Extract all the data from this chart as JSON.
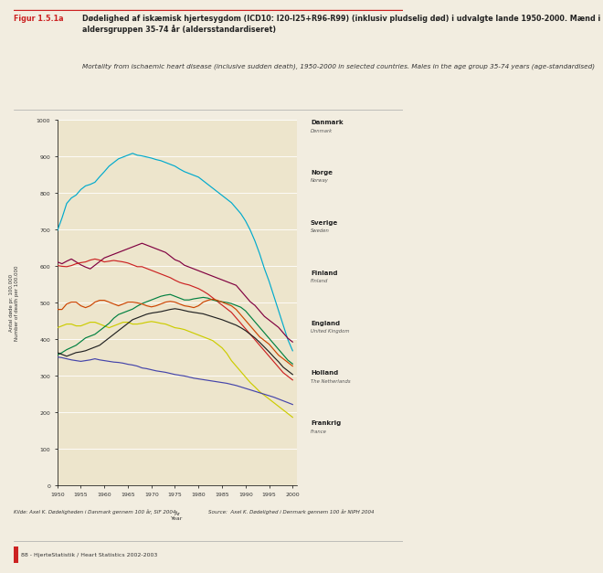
{
  "title_label": "Figur 1.5.1a",
  "title_bold": "Dødelighed af iskæmisk hjertesygdom (ICD10: I20-I25+R96-R99) (inklusiv pludselig død) i udvalgte lande 1950-2000. Mænd i aldersgruppen 35-74 år (aldersstandardiseret)",
  "title_italic": "Mortality from ischaemic heart disease (inclusive sudden death), 1950-2000 in selected countries. Males in the age group 35-74 years (age-standardised)",
  "ylabel_da": "Antal døde pr. 100.000",
  "ylabel_en": "Number of death per 100.000",
  "xlabel_da": "År",
  "xlabel_en": "Year",
  "source_da": "Kilde: Axel K. Dødeligheden i Danmark gennem 100 år, SIF 2004",
  "source_en": "Source:  Axel K. Dødelighed i Denmark gennem 100 år NIPH 2004",
  "footer": "88 - HjerteStatistik / Heart Statistics 2002-2003",
  "background_color": "#f2ede0",
  "plot_bg": "#ede5cc",
  "years": [
    1950,
    1951,
    1952,
    1953,
    1954,
    1955,
    1956,
    1957,
    1958,
    1959,
    1960,
    1961,
    1962,
    1963,
    1964,
    1965,
    1966,
    1967,
    1968,
    1969,
    1970,
    1971,
    1972,
    1973,
    1974,
    1975,
    1976,
    1977,
    1978,
    1979,
    1980,
    1981,
    1982,
    1983,
    1984,
    1985,
    1986,
    1987,
    1988,
    1989,
    1990,
    1991,
    1992,
    1993,
    1994,
    1995,
    1996,
    1997,
    1998,
    1999,
    2000
  ],
  "denmark": [
    610,
    605,
    612,
    618,
    610,
    602,
    596,
    591,
    601,
    611,
    621,
    626,
    631,
    636,
    641,
    646,
    651,
    656,
    661,
    656,
    651,
    646,
    641,
    636,
    626,
    616,
    611,
    601,
    596,
    591,
    586,
    581,
    576,
    571,
    566,
    561,
    556,
    551,
    546,
    531,
    516,
    501,
    491,
    476,
    461,
    451,
    441,
    431,
    416,
    401,
    391
  ],
  "norway": [
    600,
    598,
    597,
    600,
    605,
    608,
    610,
    615,
    618,
    615,
    610,
    612,
    614,
    612,
    610,
    607,
    602,
    597,
    597,
    592,
    587,
    582,
    577,
    572,
    567,
    560,
    554,
    550,
    547,
    542,
    537,
    530,
    522,
    512,
    502,
    492,
    482,
    472,
    457,
    442,
    427,
    412,
    397,
    382,
    367,
    352,
    337,
    322,
    307,
    297,
    287
  ],
  "sweden": [
    430,
    435,
    440,
    440,
    435,
    435,
    440,
    445,
    445,
    440,
    435,
    430,
    435,
    440,
    445,
    445,
    440,
    440,
    442,
    445,
    447,
    445,
    442,
    440,
    435,
    430,
    428,
    425,
    420,
    415,
    410,
    405,
    400,
    395,
    385,
    375,
    360,
    340,
    325,
    310,
    295,
    280,
    268,
    255,
    245,
    235,
    225,
    215,
    205,
    195,
    185
  ],
  "finland_dark": [
    355,
    362,
    370,
    376,
    382,
    392,
    402,
    407,
    412,
    422,
    432,
    442,
    456,
    466,
    471,
    476,
    481,
    489,
    496,
    501,
    506,
    511,
    516,
    519,
    521,
    516,
    511,
    506,
    506,
    509,
    511,
    513,
    511,
    506,
    503,
    501,
    499,
    496,
    491,
    486,
    476,
    461,
    446,
    431,
    416,
    401,
    386,
    371,
    356,
    341,
    331
  ],
  "england_pink": [
    480,
    480,
    495,
    500,
    500,
    490,
    485,
    490,
    500,
    505,
    505,
    500,
    495,
    490,
    495,
    500,
    500,
    498,
    495,
    490,
    487,
    490,
    495,
    500,
    502,
    500,
    495,
    490,
    488,
    485,
    490,
    500,
    505,
    508,
    505,
    500,
    495,
    490,
    480,
    465,
    450,
    435,
    420,
    405,
    395,
    385,
    370,
    355,
    345,
    335,
    325
  ],
  "netherlands": [
    362,
    357,
    352,
    357,
    362,
    364,
    367,
    372,
    377,
    382,
    392,
    402,
    412,
    422,
    432,
    442,
    452,
    457,
    462,
    467,
    470,
    472,
    474,
    477,
    480,
    482,
    480,
    477,
    474,
    472,
    470,
    468,
    464,
    460,
    456,
    452,
    447,
    442,
    437,
    430,
    422,
    412,
    402,
    390,
    377,
    364,
    350,
    337,
    322,
    312,
    302
  ],
  "france": [
    350,
    348,
    345,
    342,
    340,
    338,
    340,
    342,
    345,
    342,
    340,
    338,
    336,
    335,
    333,
    330,
    328,
    325,
    320,
    318,
    315,
    312,
    310,
    308,
    305,
    302,
    300,
    298,
    295,
    292,
    290,
    288,
    286,
    284,
    282,
    280,
    278,
    275,
    272,
    268,
    264,
    260,
    256,
    252,
    248,
    244,
    240,
    235,
    230,
    225,
    220
  ],
  "finland_cyan": [
    695,
    730,
    770,
    785,
    793,
    808,
    818,
    822,
    828,
    843,
    857,
    872,
    882,
    892,
    897,
    902,
    907,
    902,
    900,
    897,
    894,
    890,
    887,
    882,
    877,
    872,
    864,
    857,
    852,
    847,
    842,
    832,
    822,
    812,
    802,
    792,
    782,
    772,
    757,
    742,
    722,
    697,
    667,
    632,
    592,
    557,
    517,
    477,
    437,
    397,
    367
  ],
  "colors": {
    "denmark": "#800040",
    "norway": "#cc2222",
    "sweden": "#cccc00",
    "finland_dark": "#008040",
    "england_pink": "#cc4400",
    "netherlands": "#222222",
    "france": "#4444aa",
    "finland_cyan": "#00aacc"
  },
  "legend_entries": [
    {
      "da": "Danmark",
      "en": "Denmark",
      "color": "#800040"
    },
    {
      "da": "Norge",
      "en": "Norway",
      "color": "#cc2222"
    },
    {
      "da": "Sverige",
      "en": "Sweden",
      "color": "#cccc00"
    },
    {
      "da": "Finland",
      "en": "Finland",
      "color": "#008040"
    },
    {
      "da": "England",
      "en": "United Kingdom",
      "color": "#cc4400"
    },
    {
      "da": "Holland",
      "en": "The Netherlands",
      "color": "#222222"
    },
    {
      "da": "Frankrig",
      "en": "France",
      "color": "#4444aa"
    }
  ],
  "ylim": [
    0,
    1000
  ],
  "yticks": [
    0,
    100,
    200,
    300,
    400,
    500,
    600,
    700,
    800,
    900,
    1000
  ],
  "xticks": [
    1950,
    1955,
    1960,
    1965,
    1970,
    1975,
    1980,
    1985,
    1990,
    1995,
    2000
  ],
  "xtick_labels": [
    "1950",
    "1955",
    "1960",
    "1965",
    "1970",
    "1975",
    "1980",
    "1985",
    "1990",
    "1995",
    "2000"
  ]
}
